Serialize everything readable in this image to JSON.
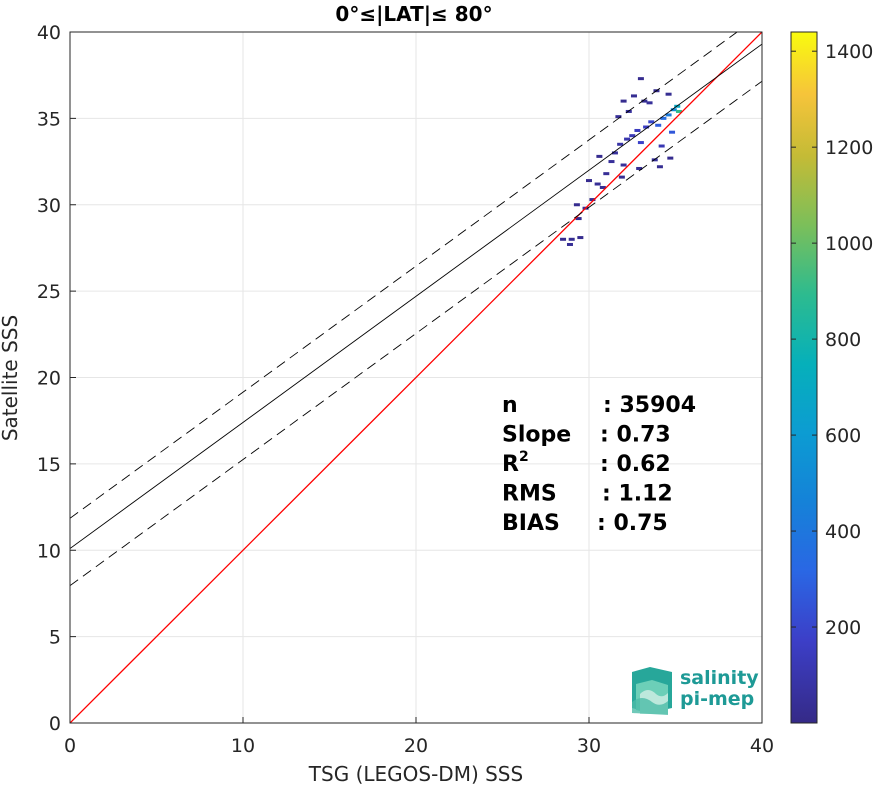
{
  "chart_data": {
    "type": "scatter",
    "title": "0°≤|LAT|≤ 80°",
    "xlabel": "TSG (LEGOS-DM) SSS",
    "ylabel": "Satellite SSS",
    "xlim": [
      0,
      40
    ],
    "ylim": [
      0,
      40
    ],
    "xticks": [
      "0",
      "10",
      "20",
      "30",
      "40"
    ],
    "yticks": [
      "0",
      "5",
      "10",
      "15",
      "20",
      "25",
      "30",
      "35",
      "40"
    ],
    "grid": true,
    "lines": [
      {
        "name": "identity",
        "color": "#ff0000",
        "style": "solid",
        "slope": 1.0,
        "intercept": 0.0
      },
      {
        "name": "regression",
        "color": "#000000",
        "style": "solid",
        "slope": 0.73,
        "intercept": 10.1
      },
      {
        "name": "upper",
        "color": "#000000",
        "style": "dashed",
        "slope": 0.73,
        "intercept": 11.85
      },
      {
        "name": "lower",
        "color": "#000000",
        "style": "dashed",
        "slope": 0.73,
        "intercept": 7.95
      }
    ],
    "density_points": [
      {
        "x": 28.5,
        "y": 28.0,
        "c": 20
      },
      {
        "x": 29.0,
        "y": 28.0,
        "c": 30
      },
      {
        "x": 29.5,
        "y": 28.1,
        "c": 20
      },
      {
        "x": 28.9,
        "y": 27.7,
        "c": 40
      },
      {
        "x": 29.4,
        "y": 29.2,
        "c": 20
      },
      {
        "x": 29.8,
        "y": 29.8,
        "c": 30
      },
      {
        "x": 29.3,
        "y": 30.0,
        "c": 20
      },
      {
        "x": 30.2,
        "y": 30.3,
        "c": 30
      },
      {
        "x": 30.5,
        "y": 31.2,
        "c": 40
      },
      {
        "x": 30.0,
        "y": 31.4,
        "c": 20
      },
      {
        "x": 30.8,
        "y": 31.0,
        "c": 30
      },
      {
        "x": 31.0,
        "y": 31.8,
        "c": 40
      },
      {
        "x": 31.3,
        "y": 32.5,
        "c": 50
      },
      {
        "x": 30.6,
        "y": 32.8,
        "c": 20
      },
      {
        "x": 31.5,
        "y": 33.0,
        "c": 60
      },
      {
        "x": 31.8,
        "y": 33.5,
        "c": 80
      },
      {
        "x": 32.0,
        "y": 32.3,
        "c": 50
      },
      {
        "x": 32.2,
        "y": 33.8,
        "c": 100
      },
      {
        "x": 32.5,
        "y": 34.0,
        "c": 120
      },
      {
        "x": 32.8,
        "y": 34.3,
        "c": 150
      },
      {
        "x": 33.0,
        "y": 33.6,
        "c": 180
      },
      {
        "x": 33.3,
        "y": 34.5,
        "c": 160
      },
      {
        "x": 33.6,
        "y": 34.8,
        "c": 200
      },
      {
        "x": 34.0,
        "y": 34.6,
        "c": 280
      },
      {
        "x": 34.3,
        "y": 35.0,
        "c": 350
      },
      {
        "x": 34.6,
        "y": 35.2,
        "c": 420
      },
      {
        "x": 34.9,
        "y": 35.5,
        "c": 520
      },
      {
        "x": 35.1,
        "y": 35.7,
        "c": 700
      },
      {
        "x": 35.2,
        "y": 35.4,
        "c": 900
      },
      {
        "x": 34.8,
        "y": 34.2,
        "c": 260
      },
      {
        "x": 34.2,
        "y": 33.4,
        "c": 120
      },
      {
        "x": 33.8,
        "y": 32.6,
        "c": 60
      },
      {
        "x": 33.2,
        "y": 36.0,
        "c": 30
      },
      {
        "x": 32.6,
        "y": 36.3,
        "c": 30
      },
      {
        "x": 33.9,
        "y": 36.6,
        "c": 20
      },
      {
        "x": 32.0,
        "y": 36.0,
        "c": 20
      },
      {
        "x": 34.6,
        "y": 36.4,
        "c": 30
      },
      {
        "x": 33.0,
        "y": 37.3,
        "c": 20
      },
      {
        "x": 31.7,
        "y": 35.1,
        "c": 40
      },
      {
        "x": 32.3,
        "y": 35.4,
        "c": 60
      },
      {
        "x": 33.5,
        "y": 35.9,
        "c": 50
      },
      {
        "x": 34.1,
        "y": 32.2,
        "c": 30
      },
      {
        "x": 32.9,
        "y": 32.1,
        "c": 40
      },
      {
        "x": 31.9,
        "y": 31.6,
        "c": 30
      },
      {
        "x": 34.7,
        "y": 32.7,
        "c": 20
      }
    ],
    "stats": [
      {
        "label": "n",
        "value": ": 35904"
      },
      {
        "label": "Slope",
        "value": ": 0.73"
      },
      {
        "label": "R",
        "sup": "2",
        "value": ": 0.62"
      },
      {
        "label": "RMS",
        "value": ": 1.12"
      },
      {
        "label": "BIAS",
        "value": ": 0.75"
      }
    ],
    "colorbar": {
      "colormap": "parula",
      "range": [
        0,
        1440
      ],
      "ticks": [
        "200",
        "400",
        "600",
        "800",
        "1000",
        "1200",
        "1400"
      ]
    }
  },
  "logo": {
    "line1": "salinity",
    "line2": "pi-mep"
  }
}
